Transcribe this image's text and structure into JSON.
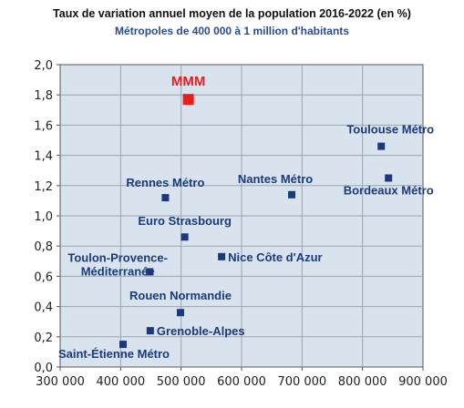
{
  "chart_data": {
    "type": "scatter",
    "title": "Taux de variation annuel moyen de la population 2016-2022 (en %)",
    "subtitle": "Métropoles de 400 000  à 1 million d'habitants",
    "xlabel": "",
    "ylabel": "",
    "xlim": [
      300000,
      900000
    ],
    "ylim": [
      0,
      2.0
    ],
    "x_ticks": [
      "300 000",
      "400 000",
      "500 000",
      "600 000",
      "700 000",
      "800 000",
      "900 000"
    ],
    "y_ticks": [
      "0,0",
      "0,2",
      "0,4",
      "0,6",
      "0,8",
      "1,0",
      "1,2",
      "1,4",
      "1,6",
      "1,8",
      "2,0"
    ],
    "grid": true,
    "points": [
      {
        "label": "MMM",
        "x": 512000,
        "y": 1.77,
        "highlight": true
      },
      {
        "label": "Toulouse Métro",
        "x": 831000,
        "y": 1.46
      },
      {
        "label": "Bordeaux Métro",
        "x": 843000,
        "y": 1.25
      },
      {
        "label": "Nantes Métro",
        "x": 683000,
        "y": 1.14
      },
      {
        "label": "Rennes Métro",
        "x": 474000,
        "y": 1.12
      },
      {
        "label": "Euro Strasbourg",
        "x": 506000,
        "y": 0.86
      },
      {
        "label": "Nice Côte d'Azur",
        "x": 567000,
        "y": 0.73
      },
      {
        "label": "Toulon-Provence-\nMéditerranée",
        "x": 448000,
        "y": 0.63
      },
      {
        "label": "Rouen Normandie",
        "x": 499000,
        "y": 0.36
      },
      {
        "label": "Grenoble-Alpes",
        "x": 449000,
        "y": 0.24
      },
      {
        "label": "Saint-Étienne Métro",
        "x": 404000,
        "y": 0.15
      }
    ],
    "colors": {
      "marker": "#1a3a7c",
      "highlight": "#e61e1e",
      "plot_bg": "#d9e3ee",
      "grid": "#9aa5b1"
    }
  }
}
